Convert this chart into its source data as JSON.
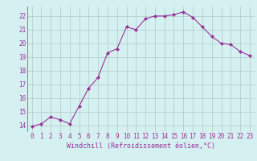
{
  "x": [
    0,
    1,
    2,
    3,
    4,
    5,
    6,
    7,
    8,
    9,
    10,
    11,
    12,
    13,
    14,
    15,
    16,
    17,
    18,
    19,
    20,
    21,
    22,
    23
  ],
  "y": [
    13.9,
    14.1,
    14.6,
    14.4,
    14.1,
    15.4,
    16.7,
    17.5,
    19.3,
    19.6,
    21.2,
    21.0,
    21.8,
    22.0,
    22.0,
    22.1,
    22.3,
    21.9,
    21.2,
    20.5,
    20.0,
    19.9,
    19.4,
    19.1
  ],
  "line_color": "#993399",
  "marker_color": "#993399",
  "bg_color": "#d5f0f0",
  "grid_color": "#b0c8c8",
  "xlabel": "Windchill (Refroidissement éolien,°C)",
  "xlabel_color": "#993399",
  "yticks": [
    14,
    15,
    16,
    17,
    18,
    19,
    20,
    21,
    22
  ],
  "xticks": [
    0,
    1,
    2,
    3,
    4,
    5,
    6,
    7,
    8,
    9,
    10,
    11,
    12,
    13,
    14,
    15,
    16,
    17,
    18,
    19,
    20,
    21,
    22,
    23
  ],
  "ylim": [
    13.5,
    22.7
  ],
  "xlim": [
    -0.5,
    23.5
  ],
  "tick_color": "#993399",
  "font_family": "monospace",
  "tick_fontsize": 5.5,
  "xlabel_fontsize": 6.0
}
